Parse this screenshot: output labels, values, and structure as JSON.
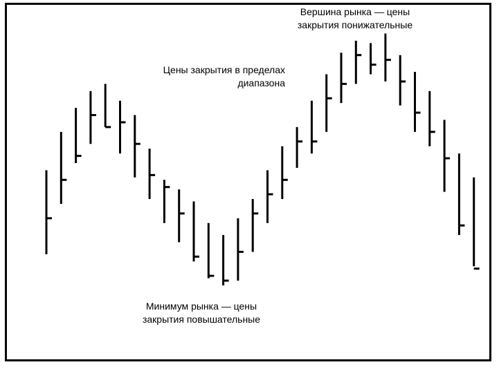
{
  "annotations": {
    "top_line1": "Вершина рынка — цены",
    "top_line2": "закрытия понижательные",
    "mid_line1": "Цены закрытия в пределах",
    "mid_line2": "диапазона",
    "bottom_line1": "Минимум рынка — цены",
    "bottom_line2": "закрытия повышательные"
  },
  "colors": {
    "bars": "#000000",
    "background": "#ffffff",
    "frame": "#000000"
  },
  "chart_data": {
    "type": "bar",
    "subtype": "ohlc-close-only",
    "title": "",
    "xlabel": "",
    "ylabel": "",
    "axes_visible": false,
    "grid": false,
    "ylim": [
      0,
      100
    ],
    "bars": [
      {
        "high": 50,
        "low": 15,
        "close": 30
      },
      {
        "high": 66,
        "low": 36,
        "close": 46
      },
      {
        "high": 76,
        "low": 53,
        "close": 56
      },
      {
        "high": 83,
        "low": 61,
        "close": 73
      },
      {
        "high": 86,
        "low": 68,
        "close": 68
      },
      {
        "high": 79,
        "low": 57,
        "close": 70
      },
      {
        "high": 73,
        "low": 47,
        "close": 61
      },
      {
        "high": 59,
        "low": 38,
        "close": 48
      },
      {
        "high": 46,
        "low": 28,
        "close": 43
      },
      {
        "high": 42,
        "low": 20,
        "close": 32
      },
      {
        "high": 37,
        "low": 12,
        "close": 14
      },
      {
        "high": 28,
        "low": 5,
        "close": 6
      },
      {
        "high": 23,
        "low": 2,
        "close": 4
      },
      {
        "high": 30,
        "low": 4,
        "close": 16
      },
      {
        "high": 38,
        "low": 16,
        "close": 32
      },
      {
        "high": 50,
        "low": 28,
        "close": 40
      },
      {
        "high": 60,
        "low": 38,
        "close": 46
      },
      {
        "high": 68,
        "low": 51,
        "close": 62
      },
      {
        "high": 79,
        "low": 57,
        "close": 62
      },
      {
        "high": 90,
        "low": 66,
        "close": 80
      },
      {
        "high": 99,
        "low": 78,
        "close": 86
      },
      {
        "high": 104,
        "low": 86,
        "close": 98
      },
      {
        "high": 103,
        "low": 90,
        "close": 94
      },
      {
        "high": 107,
        "low": 87,
        "close": 96
      },
      {
        "high": 98,
        "low": 77,
        "close": 87
      },
      {
        "high": 91,
        "low": 66,
        "close": 74
      },
      {
        "high": 83,
        "low": 60,
        "close": 66
      },
      {
        "high": 71,
        "low": 41,
        "close": 55
      },
      {
        "high": 57,
        "low": 23,
        "close": 27
      },
      {
        "high": 47,
        "low": 10,
        "close": 9
      }
    ]
  }
}
